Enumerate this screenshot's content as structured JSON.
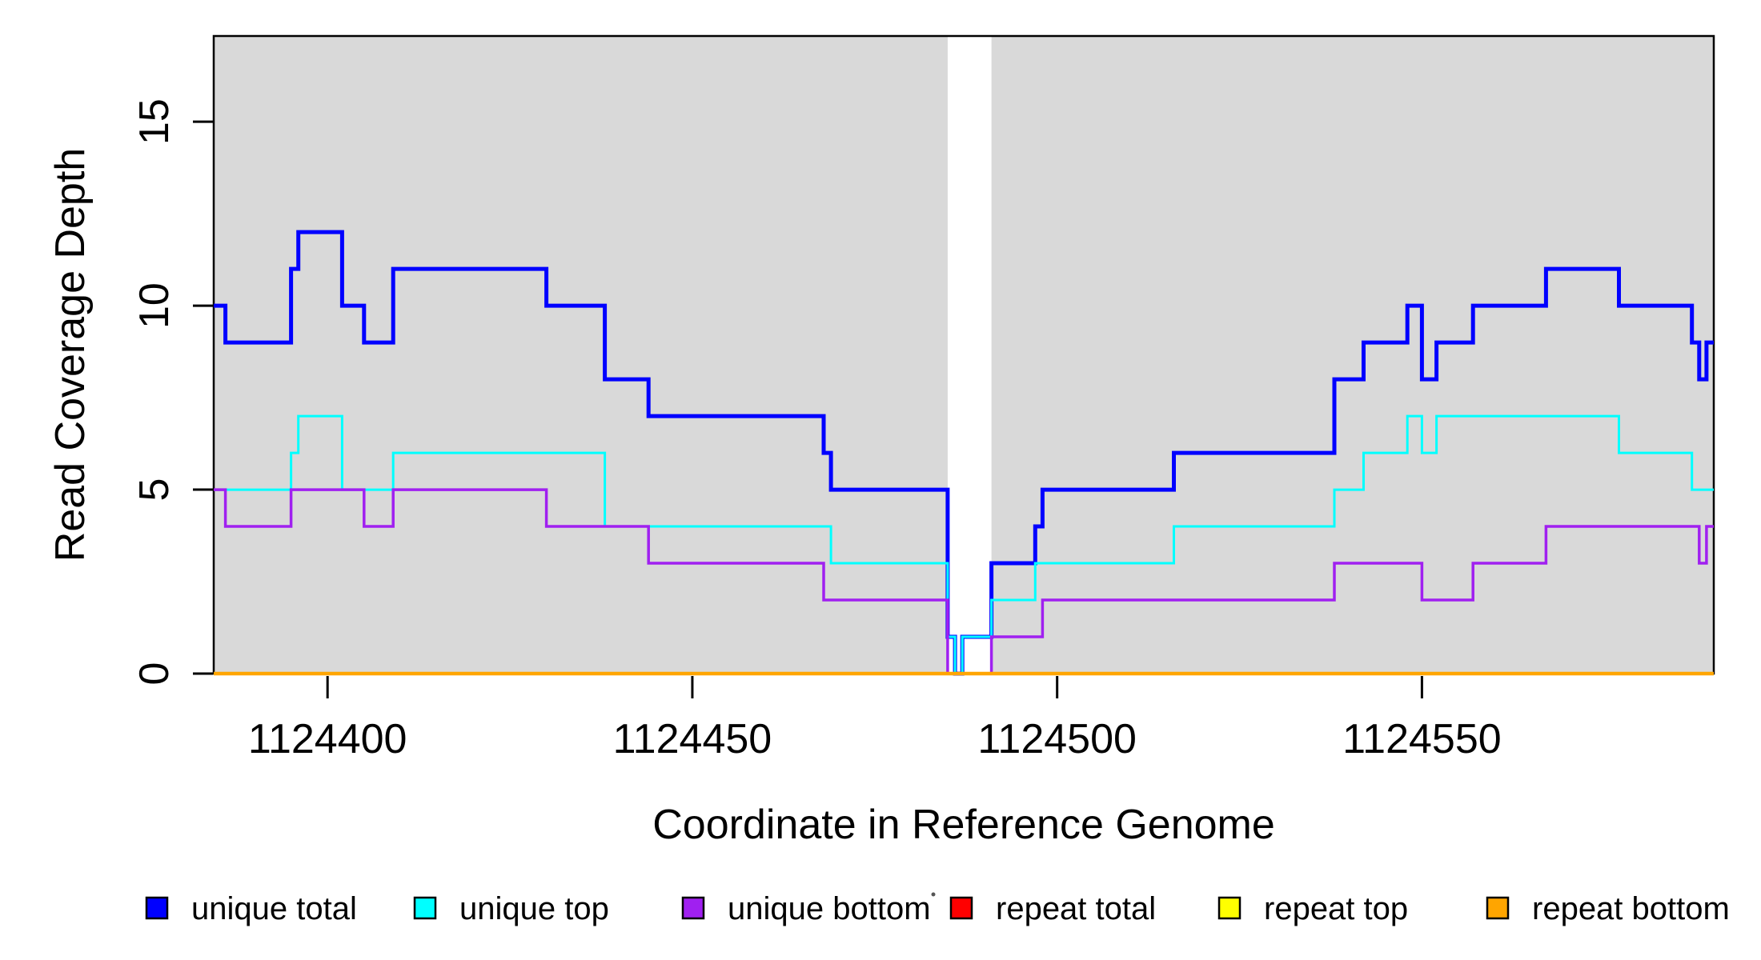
{
  "chart_data": {
    "type": "line",
    "subtype": "step",
    "title": "",
    "xlabel": "Coordinate in Reference Genome",
    "ylabel": "Read Coverage Depth",
    "xlim": [
      1124384.4,
      1124590.0
    ],
    "ylim": [
      0,
      17.33
    ],
    "x_ticks": [
      1124400,
      1124450,
      1124500,
      1124550
    ],
    "x_tick_labels": [
      "1124400",
      "1124450",
      "1124500",
      "1124550"
    ],
    "y_ticks": [
      0,
      5,
      10,
      15
    ],
    "y_tick_labels": [
      "0",
      "5",
      "10",
      "15"
    ],
    "grid": false,
    "plot_background_color": "#d9d9d9",
    "gap_band": {
      "from": 1124485,
      "to": 1124491,
      "color": "#ffffff"
    },
    "axis_color": "#000000",
    "series": [
      {
        "name": "unique total",
        "color": "#0000ff",
        "line_width": 5,
        "points": [
          [
            1124384.4,
            10
          ],
          [
            1124386,
            9
          ],
          [
            1124395,
            11
          ],
          [
            1124396,
            12
          ],
          [
            1124402,
            10
          ],
          [
            1124405,
            9
          ],
          [
            1124409,
            11
          ],
          [
            1124430,
            10
          ],
          [
            1124438,
            8
          ],
          [
            1124444,
            7
          ],
          [
            1124468,
            6
          ],
          [
            1124469,
            5
          ],
          [
            1124485,
            1
          ],
          [
            1124486,
            0
          ],
          [
            1124487,
            1
          ],
          [
            1124491,
            3
          ],
          [
            1124497,
            4
          ],
          [
            1124498,
            5
          ],
          [
            1124516,
            6
          ],
          [
            1124538,
            8
          ],
          [
            1124542,
            9
          ],
          [
            1124548,
            10
          ],
          [
            1124550,
            8
          ],
          [
            1124552,
            9
          ],
          [
            1124557,
            10
          ],
          [
            1124567,
            11
          ],
          [
            1124577,
            10
          ],
          [
            1124587,
            9
          ],
          [
            1124588,
            8
          ],
          [
            1124589,
            9
          ]
        ]
      },
      {
        "name": "unique top",
        "color": "#00ffff",
        "line_width": 3,
        "points": [
          [
            1124384.4,
            5
          ],
          [
            1124395,
            6
          ],
          [
            1124396,
            7
          ],
          [
            1124402,
            5
          ],
          [
            1124409,
            6
          ],
          [
            1124438,
            4
          ],
          [
            1124469,
            3
          ],
          [
            1124485,
            1
          ],
          [
            1124486,
            0
          ],
          [
            1124487,
            1
          ],
          [
            1124491,
            2
          ],
          [
            1124497,
            3
          ],
          [
            1124516,
            4
          ],
          [
            1124538,
            5
          ],
          [
            1124542,
            6
          ],
          [
            1124548,
            7
          ],
          [
            1124550,
            6
          ],
          [
            1124552,
            7
          ],
          [
            1124577,
            6
          ],
          [
            1124587,
            5
          ]
        ]
      },
      {
        "name": "unique bottom",
        "color": "#a020f0",
        "line_width": 3.5,
        "points": [
          [
            1124384.4,
            5
          ],
          [
            1124386,
            4
          ],
          [
            1124395,
            5
          ],
          [
            1124405,
            4
          ],
          [
            1124409,
            5
          ],
          [
            1124430,
            4
          ],
          [
            1124444,
            3
          ],
          [
            1124468,
            2
          ],
          [
            1124485,
            0
          ],
          [
            1124491,
            1
          ],
          [
            1124498,
            2
          ],
          [
            1124538,
            3
          ],
          [
            1124550,
            2
          ],
          [
            1124557,
            3
          ],
          [
            1124567,
            4
          ],
          [
            1124588,
            3
          ],
          [
            1124589,
            4
          ]
        ]
      },
      {
        "name": "repeat total",
        "color": "#ff0000",
        "line_width": 3,
        "points": [
          [
            1124384.4,
            0
          ]
        ]
      },
      {
        "name": "repeat top",
        "color": "#ffff00",
        "line_width": 3,
        "points": [
          [
            1124384.4,
            0
          ]
        ]
      },
      {
        "name": "repeat bottom",
        "color": "#ffa500",
        "line_width": 4.5,
        "points": [
          [
            1124384.4,
            0
          ]
        ]
      }
    ],
    "legend": {
      "position": "bottom",
      "entries": [
        {
          "label": "unique total",
          "color": "#0000ff"
        },
        {
          "label": "unique top",
          "color": "#00ffff"
        },
        {
          "label": "unique bottom",
          "color": "#a020f0"
        },
        {
          "label": "repeat total",
          "color": "#ff0000"
        },
        {
          "label": "repeat top",
          "color": "#ffff00"
        },
        {
          "label": "repeat bottom",
          "color": "#ffa500"
        }
      ]
    }
  }
}
